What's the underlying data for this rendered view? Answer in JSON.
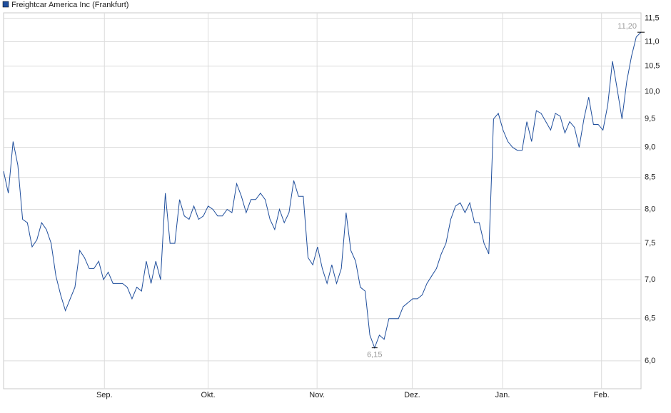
{
  "chart_data": {
    "type": "line",
    "series": [
      {
        "name": "Freightcar America Inc (Frankfurt)",
        "color": "#1f4e9c",
        "values": [
          8.6,
          8.25,
          9.1,
          8.7,
          7.85,
          7.8,
          7.45,
          7.55,
          7.8,
          7.7,
          7.5,
          7.05,
          6.8,
          6.6,
          6.75,
          6.9,
          7.4,
          7.3,
          7.15,
          7.15,
          7.25,
          7.0,
          7.1,
          6.95,
          6.95,
          6.95,
          6.9,
          6.75,
          6.9,
          6.85,
          7.25,
          6.95,
          7.25,
          7.0,
          8.25,
          7.5,
          7.5,
          8.15,
          7.9,
          7.85,
          8.05,
          7.85,
          7.9,
          8.05,
          8.0,
          7.9,
          7.9,
          8.0,
          7.95,
          8.4,
          8.2,
          7.95,
          8.15,
          8.15,
          8.25,
          8.15,
          7.85,
          7.7,
          8.0,
          7.8,
          7.95,
          8.45,
          8.2,
          8.2,
          7.3,
          7.2,
          7.45,
          7.15,
          6.95,
          7.2,
          6.95,
          7.15,
          7.95,
          7.4,
          7.25,
          6.9,
          6.85,
          6.3,
          6.15,
          6.3,
          6.25,
          6.5,
          6.5,
          6.5,
          6.65,
          6.7,
          6.75,
          6.75,
          6.8,
          6.95,
          7.05,
          7.15,
          7.35,
          7.5,
          7.85,
          8.05,
          8.1,
          7.95,
          8.1,
          7.8,
          7.8,
          7.5,
          7.35,
          9.5,
          9.6,
          9.3,
          9.1,
          9.0,
          8.95,
          8.95,
          9.45,
          9.1,
          9.65,
          9.6,
          9.45,
          9.3,
          9.6,
          9.55,
          9.25,
          9.45,
          9.35,
          9.0,
          9.5,
          9.9,
          9.4,
          9.4,
          9.3,
          9.75,
          10.6,
          10.05,
          9.5,
          10.2,
          10.7,
          11.1,
          11.2
        ]
      }
    ],
    "max_label": "11,20",
    "min_label": "6,15",
    "xlim": [
      0,
      134
    ],
    "xticks": [
      {
        "value": 21.2,
        "label": "Sep."
      },
      {
        "value": 43.0,
        "label": "Okt."
      },
      {
        "value": 65.9,
        "label": "Nov."
      },
      {
        "value": 85.9,
        "label": "Dez."
      },
      {
        "value": 104.9,
        "label": "Jan."
      },
      {
        "value": 125.7,
        "label": "Feb."
      }
    ],
    "ylim": [
      5.69,
      11.62
    ],
    "log": true,
    "yticks": [
      {
        "value": 6.0,
        "label": "6,0"
      },
      {
        "value": 6.5,
        "label": "6,5"
      },
      {
        "value": 7.0,
        "label": "7,0"
      },
      {
        "value": 7.5,
        "label": "7,5"
      },
      {
        "value": 8.0,
        "label": "8,0"
      },
      {
        "value": 8.5,
        "label": "8,5"
      },
      {
        "value": 9.0,
        "label": "9,0"
      },
      {
        "value": 9.5,
        "label": "9,5"
      },
      {
        "value": 10.0,
        "label": "10,0"
      },
      {
        "value": 10.5,
        "label": "10,5"
      },
      {
        "value": 11.0,
        "label": "11,0"
      },
      {
        "value": 11.5,
        "label": "11,5"
      }
    ],
    "grid": true,
    "legend": "top-left"
  }
}
